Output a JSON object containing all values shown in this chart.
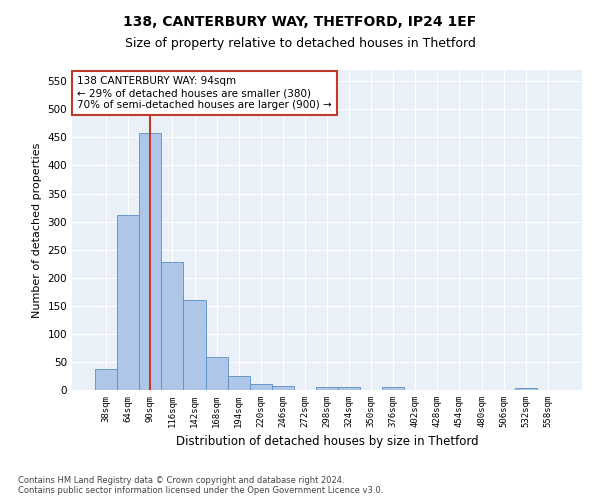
{
  "title1": "138, CANTERBURY WAY, THETFORD, IP24 1EF",
  "title2": "Size of property relative to detached houses in Thetford",
  "xlabel": "Distribution of detached houses by size in Thetford",
  "ylabel": "Number of detached properties",
  "bin_labels": [
    "38sqm",
    "64sqm",
    "90sqm",
    "116sqm",
    "142sqm",
    "168sqm",
    "194sqm",
    "220sqm",
    "246sqm",
    "272sqm",
    "298sqm",
    "324sqm",
    "350sqm",
    "376sqm",
    "402sqm",
    "428sqm",
    "454sqm",
    "480sqm",
    "506sqm",
    "532sqm",
    "558sqm"
  ],
  "bar_values": [
    38,
    311,
    458,
    228,
    160,
    58,
    25,
    10,
    8,
    0,
    5,
    6,
    0,
    5,
    0,
    0,
    0,
    0,
    0,
    4,
    0
  ],
  "bar_color": "#aec6e8",
  "bar_edge_color": "#5a8fc2",
  "vline_x": 2,
  "vline_color": "#c0392b",
  "annotation_text": "138 CANTERBURY WAY: 94sqm\n← 29% of detached houses are smaller (380)\n70% of semi-detached houses are larger (900) →",
  "annotation_box_color": "white",
  "annotation_box_edge_color": "#c0392b",
  "ylim": [
    0,
    570
  ],
  "yticks": [
    0,
    50,
    100,
    150,
    200,
    250,
    300,
    350,
    400,
    450,
    500,
    550
  ],
  "bg_color": "#eaf0f8",
  "footnote": "Contains HM Land Registry data © Crown copyright and database right 2024.\nContains public sector information licensed under the Open Government Licence v3.0.",
  "title1_fontsize": 10,
  "title2_fontsize": 9,
  "xlabel_fontsize": 8.5,
  "ylabel_fontsize": 8
}
